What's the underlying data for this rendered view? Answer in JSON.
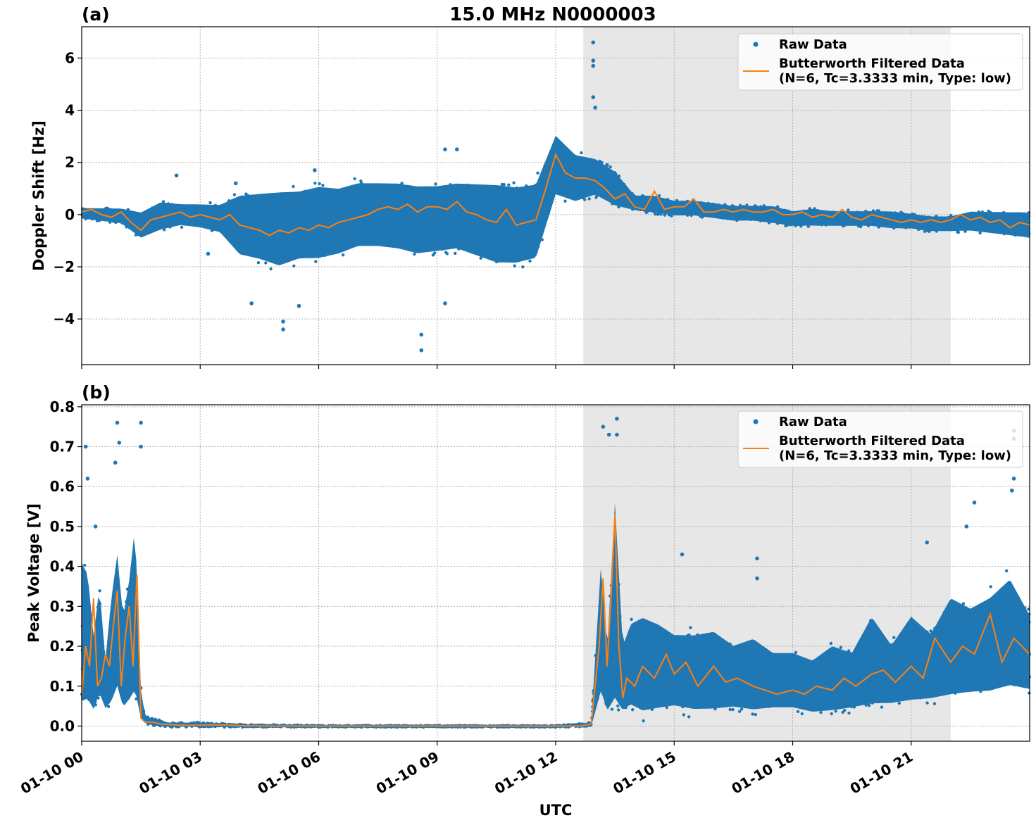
{
  "figure": {
    "title": "15.0 MHz N0000003",
    "xlabel": "UTC"
  },
  "colors": {
    "raw": "#1f77b4",
    "filtered": "#ff7f0e",
    "shade": "#e7e7e7",
    "grid": "#b0b0b0"
  },
  "legend": {
    "raw_label": "Raw Data",
    "filtered_label_line1": "Butterworth Filtered Data",
    "filtered_label_line2": "(N=6, Tc=3.3333 min, Type: low)"
  },
  "chart_data": [
    {
      "type": "scatter",
      "panel": "(a)",
      "title": "15.0 MHz N0000003",
      "xlabel": "",
      "ylabel": "Doppler Shift [Hz]",
      "x_unit": "hours UTC on 01-10",
      "xlim": [
        0,
        24
      ],
      "ylim": [
        -5.75,
        7.2
      ],
      "xticks": [
        0,
        3,
        6,
        9,
        12,
        15,
        18,
        21
      ],
      "xtick_labels": [
        "01-10 00",
        "01-10 03",
        "01-10 06",
        "01-10 09",
        "01-10 12",
        "01-10 15",
        "01-10 18",
        "01-10 21"
      ],
      "yticks": [
        -4,
        -2,
        0,
        2,
        4,
        6
      ],
      "ytick_labels": [
        "−4",
        "−2",
        "0",
        "2",
        "4",
        "6"
      ],
      "grid": true,
      "legend_position": "top-right",
      "shaded_x": [
        12.7,
        22.0
      ],
      "series": [
        {
          "name": "Raw Data",
          "kind": "scatter-band",
          "x": [
            0,
            0.5,
            1.0,
            1.5,
            2.0,
            2.5,
            3.0,
            3.5,
            4.0,
            4.5,
            5.0,
            5.5,
            6.0,
            6.5,
            7.0,
            7.5,
            8.0,
            8.5,
            9.0,
            9.5,
            10.0,
            10.5,
            11.0,
            11.5,
            12.0,
            12.5,
            13.0,
            13.5,
            14.0,
            14.5,
            15.0,
            15.5,
            16.0,
            16.5,
            17.0,
            17.5,
            18.0,
            18.5,
            19.0,
            19.5,
            20.0,
            20.5,
            21.0,
            21.5,
            22.0,
            22.5,
            23.0,
            23.5,
            24.0
          ],
          "upper": [
            0.3,
            0.3,
            0.3,
            0.2,
            0.6,
            0.5,
            0.5,
            0.5,
            1.0,
            1.1,
            1.2,
            1.2,
            1.4,
            1.3,
            1.5,
            1.5,
            1.5,
            1.4,
            1.4,
            1.5,
            1.5,
            1.5,
            1.4,
            1.5,
            3.3,
            2.5,
            2.3,
            1.8,
            0.8,
            0.8,
            0.6,
            0.6,
            0.5,
            0.4,
            0.4,
            0.4,
            0.2,
            0.3,
            0.2,
            0.2,
            0.2,
            0.2,
            0.1,
            0.0,
            0.0,
            0.2,
            0.2,
            0.2,
            0.2
          ],
          "lower": [
            -0.2,
            -0.3,
            -0.4,
            -1.0,
            -0.7,
            -0.5,
            -0.6,
            -0.8,
            -1.8,
            -2.0,
            -2.3,
            -2.0,
            -2.0,
            -1.8,
            -1.5,
            -1.5,
            -1.6,
            -1.8,
            -1.7,
            -1.6,
            -1.9,
            -2.2,
            -2.2,
            -2.0,
            0.5,
            0.3,
            0.6,
            0.2,
            0.1,
            0.0,
            -0.1,
            -0.1,
            -0.2,
            -0.3,
            -0.3,
            -0.4,
            -0.5,
            -0.5,
            -0.5,
            -0.5,
            -0.5,
            -0.6,
            -0.6,
            -0.7,
            -0.7,
            -0.7,
            -0.8,
            -0.9,
            -1.0
          ],
          "outliers_x": [
            2.4,
            3.2,
            3.9,
            4.3,
            5.1,
            5.1,
            5.5,
            5.9,
            8.6,
            8.6,
            9.2,
            9.2,
            9.5,
            12.95,
            12.95,
            12.95,
            12.95,
            13.0,
            13.3
          ],
          "outliers_y": [
            1.5,
            -1.5,
            1.2,
            -3.4,
            -4.4,
            -4.1,
            -3.5,
            1.7,
            -5.2,
            -4.6,
            -3.4,
            2.5,
            2.5,
            6.6,
            5.9,
            5.7,
            4.5,
            4.1,
            1.9
          ]
        },
        {
          "name": "Butterworth Filtered Data (N=6, Tc=3.3333 min, Type: low)",
          "kind": "line",
          "x": [
            0,
            0.25,
            0.5,
            0.75,
            1.0,
            1.25,
            1.5,
            1.75,
            2.0,
            2.25,
            2.5,
            2.75,
            3.0,
            3.25,
            3.5,
            3.75,
            4.0,
            4.25,
            4.5,
            4.75,
            5.0,
            5.25,
            5.5,
            5.75,
            6.0,
            6.25,
            6.5,
            6.75,
            7.0,
            7.25,
            7.5,
            7.75,
            8.0,
            8.25,
            8.5,
            8.75,
            9.0,
            9.25,
            9.5,
            9.75,
            10.0,
            10.25,
            10.5,
            10.75,
            11.0,
            11.25,
            11.5,
            11.75,
            12.0,
            12.25,
            12.5,
            12.75,
            13.0,
            13.25,
            13.5,
            13.75,
            14.0,
            14.25,
            14.5,
            14.75,
            15.0,
            15.25,
            15.5,
            15.75,
            16.0,
            16.25,
            16.5,
            16.75,
            17.0,
            17.25,
            17.5,
            17.75,
            18.0,
            18.25,
            18.5,
            18.75,
            19.0,
            19.25,
            19.5,
            19.75,
            20.0,
            20.25,
            20.5,
            20.75,
            21.0,
            21.25,
            21.5,
            21.75,
            22.0,
            22.25,
            22.5,
            22.75,
            23.0,
            23.25,
            23.5,
            23.75,
            24.0
          ],
          "y": [
            0.1,
            0.2,
            0.0,
            -0.1,
            0.1,
            -0.3,
            -0.6,
            -0.2,
            -0.1,
            0.0,
            0.1,
            -0.1,
            0.0,
            -0.1,
            -0.2,
            0.0,
            -0.4,
            -0.5,
            -0.6,
            -0.8,
            -0.6,
            -0.7,
            -0.5,
            -0.6,
            -0.4,
            -0.5,
            -0.3,
            -0.2,
            -0.1,
            0.0,
            0.2,
            0.3,
            0.2,
            0.4,
            0.1,
            0.3,
            0.3,
            0.2,
            0.5,
            0.1,
            0.0,
            -0.2,
            -0.3,
            0.2,
            -0.4,
            -0.3,
            -0.2,
            1.0,
            2.3,
            1.6,
            1.4,
            1.4,
            1.3,
            1.0,
            0.6,
            0.8,
            0.3,
            0.2,
            0.9,
            0.2,
            0.3,
            0.3,
            0.6,
            0.1,
            0.1,
            0.2,
            0.1,
            0.2,
            0.1,
            0.1,
            0.2,
            0.0,
            0.0,
            0.1,
            -0.1,
            0.0,
            -0.1,
            0.2,
            -0.1,
            -0.2,
            0.0,
            -0.1,
            -0.2,
            -0.3,
            -0.2,
            -0.3,
            -0.2,
            -0.3,
            -0.2,
            0.0,
            -0.2,
            -0.1,
            -0.3,
            -0.2,
            -0.5,
            -0.3,
            -0.4
          ]
        }
      ]
    },
    {
      "type": "scatter",
      "panel": "(b)",
      "title": "",
      "xlabel": "UTC",
      "ylabel": "Peak Voltage [V]",
      "x_unit": "hours UTC on 01-10",
      "xlim": [
        0,
        24
      ],
      "ylim": [
        -0.038,
        0.805
      ],
      "xticks": [
        0,
        3,
        6,
        9,
        12,
        15,
        18,
        21
      ],
      "xtick_labels": [
        "01-10 00",
        "01-10 03",
        "01-10 06",
        "01-10 09",
        "01-10 12",
        "01-10 15",
        "01-10 18",
        "01-10 21"
      ],
      "yticks": [
        0.0,
        0.1,
        0.2,
        0.3,
        0.4,
        0.5,
        0.6,
        0.7,
        0.8
      ],
      "ytick_labels": [
        "0.0",
        "0.1",
        "0.2",
        "0.3",
        "0.4",
        "0.5",
        "0.6",
        "0.7",
        "0.8"
      ],
      "grid": true,
      "legend_position": "top-right",
      "shaded_x": [
        12.7,
        22.0
      ],
      "series": [
        {
          "name": "Raw Data",
          "kind": "scatter-band",
          "x": [
            0,
            0.15,
            0.3,
            0.45,
            0.6,
            0.75,
            0.9,
            1.05,
            1.2,
            1.35,
            1.5,
            1.6,
            1.8,
            2.2,
            3.0,
            4.0,
            6.0,
            9.0,
            12.0,
            12.9,
            13.15,
            13.3,
            13.5,
            13.7,
            13.9,
            14.2,
            14.6,
            15.0,
            15.5,
            16.0,
            16.5,
            17.0,
            17.5,
            18.0,
            18.5,
            19.0,
            19.5,
            20.0,
            20.5,
            21.0,
            21.5,
            22.0,
            22.5,
            23.0,
            23.5,
            24.0
          ],
          "upper": [
            0.45,
            0.42,
            0.25,
            0.38,
            0.18,
            0.35,
            0.47,
            0.3,
            0.4,
            0.55,
            0.1,
            0.03,
            0.02,
            0.01,
            0.01,
            0.005,
            0.002,
            0.002,
            0.002,
            0.01,
            0.45,
            0.2,
            0.62,
            0.22,
            0.28,
            0.3,
            0.28,
            0.25,
            0.25,
            0.26,
            0.22,
            0.24,
            0.2,
            0.2,
            0.18,
            0.22,
            0.2,
            0.3,
            0.22,
            0.3,
            0.25,
            0.35,
            0.32,
            0.35,
            0.4,
            0.3
          ],
          "lower": [
            0.02,
            0.03,
            0.02,
            0.05,
            0.03,
            0.03,
            0.06,
            0.02,
            0.03,
            0.04,
            0.01,
            0.005,
            0.0,
            -0.003,
            -0.003,
            -0.003,
            -0.003,
            -0.003,
            -0.003,
            -0.002,
            0.05,
            0.02,
            0.01,
            0.02,
            0.03,
            0.01,
            0.02,
            0.03,
            0.02,
            0.02,
            0.03,
            0.02,
            0.03,
            0.03,
            0.02,
            0.02,
            0.03,
            0.03,
            0.04,
            0.04,
            0.05,
            0.05,
            0.06,
            0.06,
            0.07,
            0.07
          ],
          "outliers_x": [
            0.1,
            0.15,
            0.35,
            0.9,
            0.95,
            0.85,
            1.5,
            1.5,
            13.2,
            13.35,
            13.55,
            13.55,
            15.2,
            17.1,
            17.1,
            21.4,
            22.6,
            22.4,
            23.6,
            23.6,
            23.6,
            23.55
          ],
          "outliers_y": [
            0.7,
            0.62,
            0.5,
            0.76,
            0.71,
            0.66,
            0.76,
            0.7,
            0.75,
            0.73,
            0.77,
            0.73,
            0.43,
            0.42,
            0.37,
            0.46,
            0.56,
            0.5,
            0.74,
            0.72,
            0.62,
            0.59
          ]
        },
        {
          "name": "Butterworth Filtered Data (N=6, Tc=3.3333 min, Type: low)",
          "kind": "line",
          "x": [
            0,
            0.1,
            0.2,
            0.3,
            0.4,
            0.5,
            0.6,
            0.7,
            0.8,
            0.9,
            1.0,
            1.1,
            1.2,
            1.3,
            1.4,
            1.5,
            1.6,
            1.8,
            2.0,
            2.5,
            3.0,
            3.5,
            4.0,
            5.0,
            6.0,
            8.0,
            10.0,
            12.0,
            12.6,
            12.9,
            13.1,
            13.2,
            13.3,
            13.4,
            13.5,
            13.6,
            13.7,
            13.8,
            14.0,
            14.2,
            14.5,
            14.8,
            15.0,
            15.3,
            15.6,
            16.0,
            16.3,
            16.6,
            17.0,
            17.3,
            17.6,
            18.0,
            18.3,
            18.6,
            19.0,
            19.3,
            19.6,
            20.0,
            20.3,
            20.6,
            21.0,
            21.3,
            21.6,
            22.0,
            22.3,
            22.6,
            23.0,
            23.3,
            23.6,
            24.0
          ],
          "y": [
            0.07,
            0.2,
            0.15,
            0.32,
            0.1,
            0.12,
            0.18,
            0.15,
            0.25,
            0.34,
            0.1,
            0.22,
            0.3,
            0.15,
            0.38,
            0.02,
            0.01,
            0.01,
            0.005,
            0.002,
            0.002,
            0.003,
            0.001,
            0.0,
            0.0,
            0.0,
            0.0,
            0.0,
            0.0,
            0.005,
            0.2,
            0.37,
            0.15,
            0.32,
            0.53,
            0.2,
            0.07,
            0.12,
            0.1,
            0.15,
            0.12,
            0.18,
            0.13,
            0.16,
            0.1,
            0.15,
            0.11,
            0.12,
            0.1,
            0.09,
            0.08,
            0.09,
            0.08,
            0.1,
            0.09,
            0.12,
            0.1,
            0.13,
            0.14,
            0.11,
            0.15,
            0.12,
            0.22,
            0.16,
            0.2,
            0.18,
            0.28,
            0.16,
            0.22,
            0.18
          ]
        }
      ]
    }
  ]
}
